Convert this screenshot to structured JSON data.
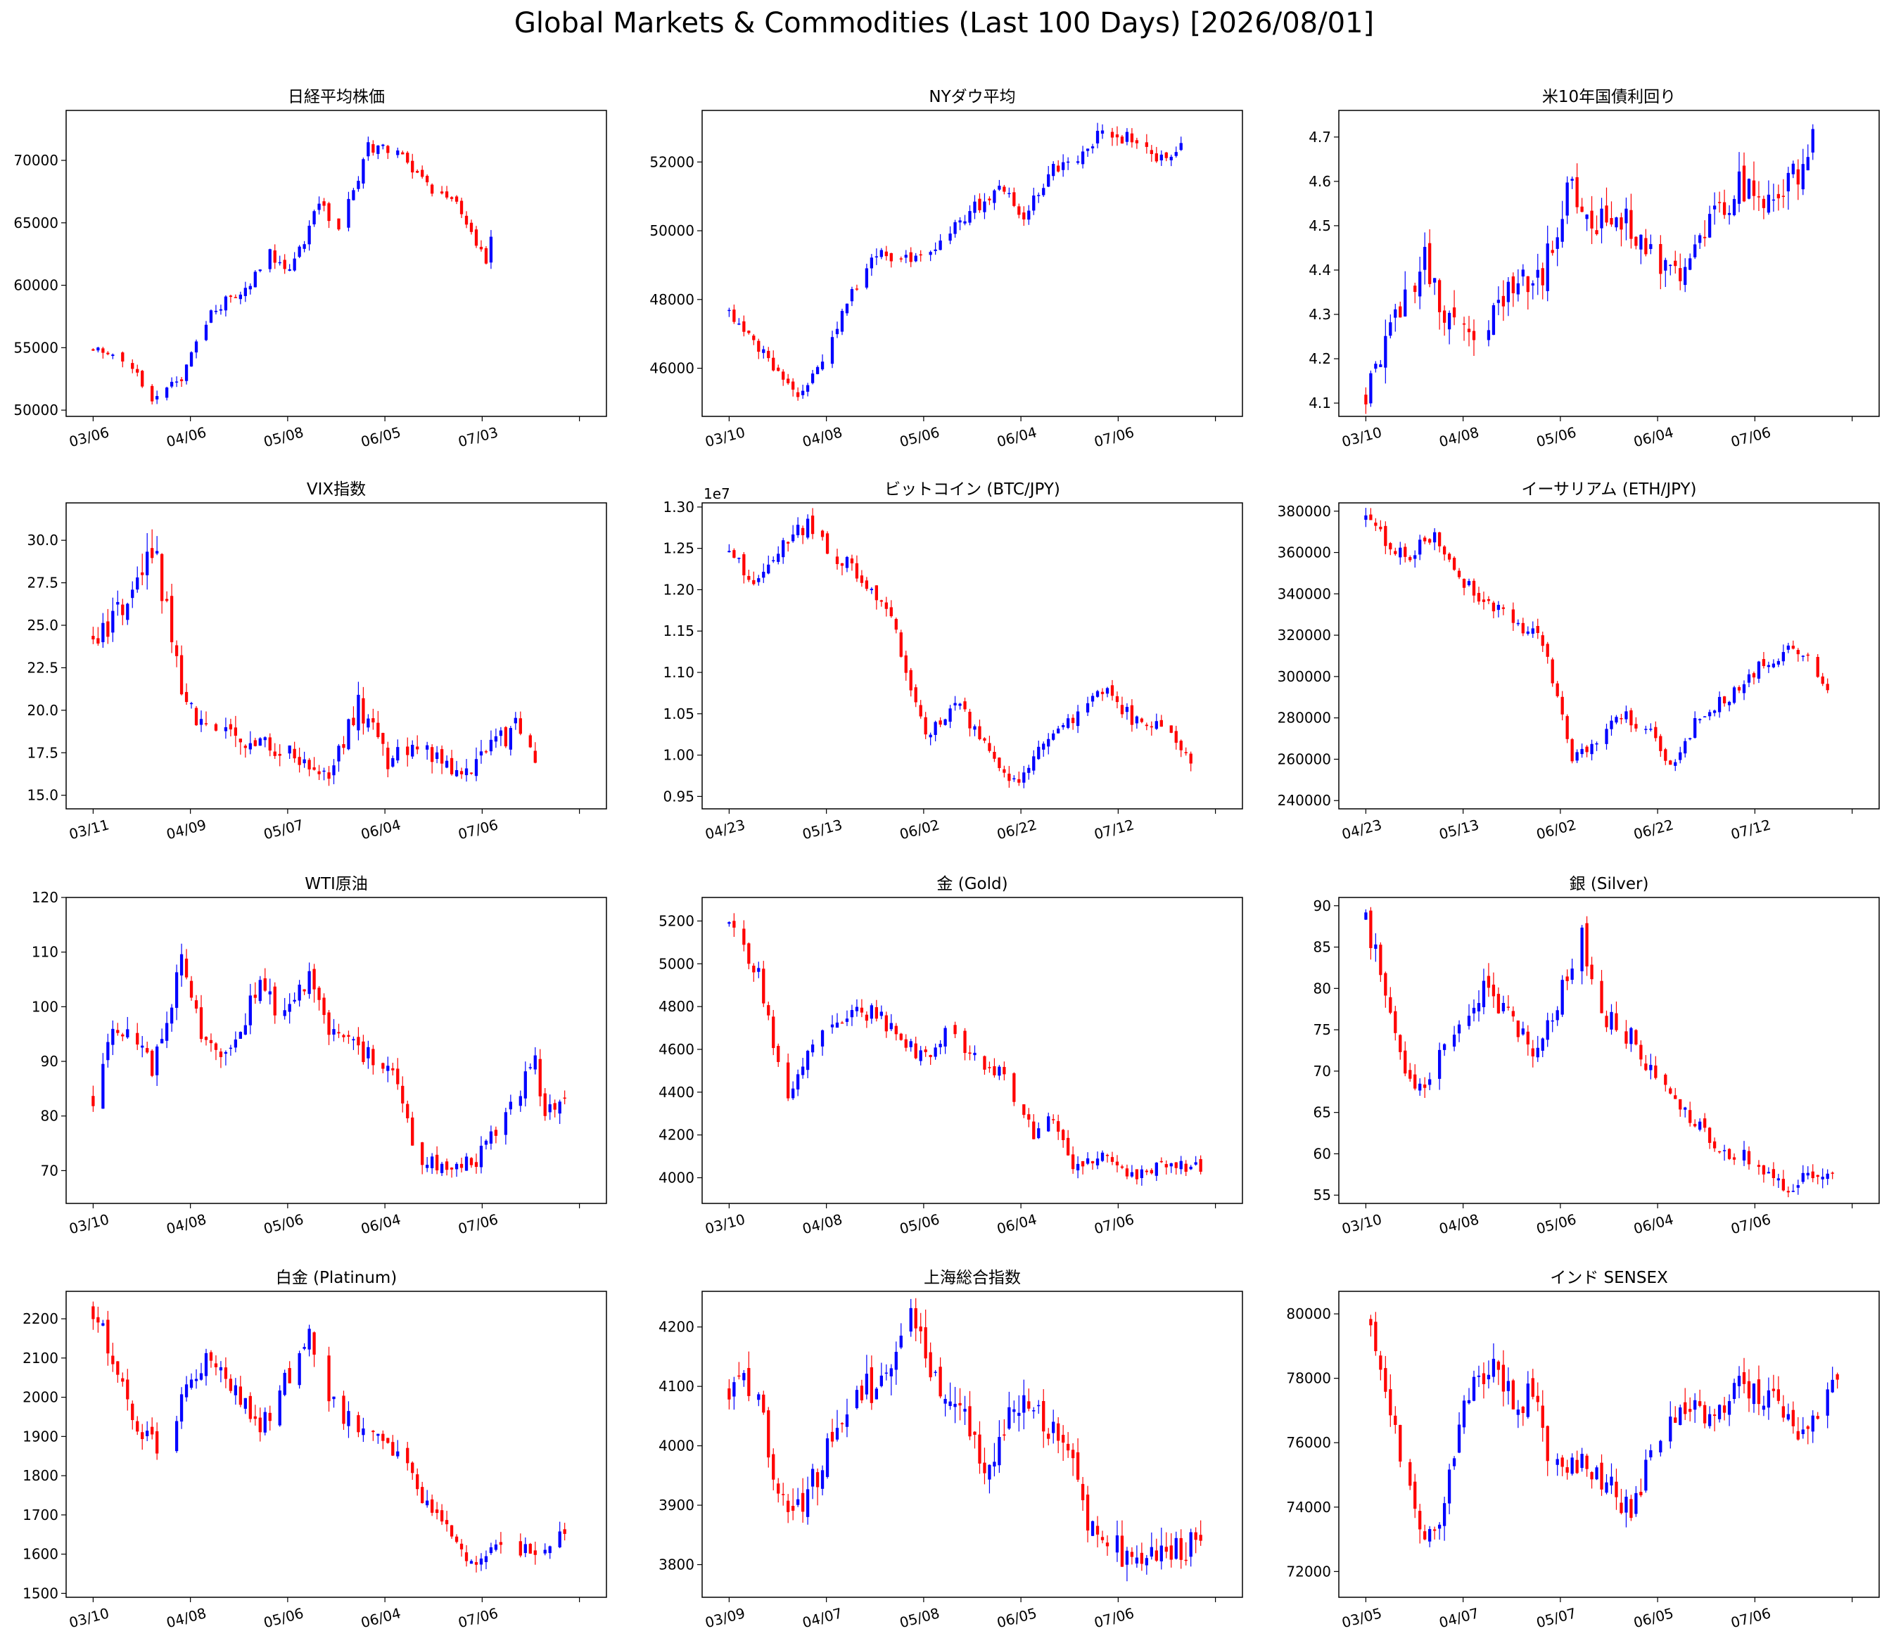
{
  "figure": {
    "title": "Global Markets & Commodities (Last 100 Days) [2026/08/01]"
  },
  "chart_data": [
    {
      "type": "candlestick",
      "title": "日経平均株価",
      "ylim": [
        49500,
        74000
      ],
      "yticks": [
        50000,
        55000,
        60000,
        65000,
        70000
      ],
      "yticklabels": [
        "50000",
        "55000",
        "60000",
        "65000",
        "70000"
      ],
      "xticklabels": [
        "03/06",
        "04/06",
        "05/08",
        "06/05",
        "07/03",
        ""
      ],
      "start": 54800,
      "anchors": [
        [
          0,
          54800
        ],
        [
          8,
          53500
        ],
        [
          12,
          51000
        ],
        [
          18,
          52500
        ],
        [
          24,
          58000
        ],
        [
          32,
          60000
        ],
        [
          36,
          62500
        ],
        [
          40,
          61000
        ],
        [
          46,
          66500
        ],
        [
          50,
          64500
        ],
        [
          56,
          71000
        ],
        [
          62,
          70500
        ],
        [
          68,
          68000
        ],
        [
          74,
          66500
        ],
        [
          80,
          62000
        ],
        [
          81,
          63500
        ]
      ],
      "vol": 0.011,
      "up_color": "blue",
      "down_color": "red"
    },
    {
      "type": "candlestick",
      "title": "NYダウ平均",
      "ylim": [
        44600,
        53500
      ],
      "yticks": [
        46000,
        48000,
        50000,
        52000
      ],
      "yticklabels": [
        "46000",
        "48000",
        "50000",
        "52000"
      ],
      "xticklabels": [
        "03/10",
        "04/08",
        "05/06",
        "06/04",
        "07/06",
        ""
      ],
      "start": 47600,
      "anchors": [
        [
          0,
          47600
        ],
        [
          6,
          46500
        ],
        [
          10,
          46000
        ],
        [
          14,
          45200
        ],
        [
          20,
          46600
        ],
        [
          24,
          48000
        ],
        [
          30,
          49300
        ],
        [
          36,
          49200
        ],
        [
          44,
          49800
        ],
        [
          50,
          50700
        ],
        [
          56,
          51200
        ],
        [
          60,
          50500
        ],
        [
          66,
          51800
        ],
        [
          72,
          52200
        ],
        [
          76,
          53000
        ],
        [
          82,
          52600
        ],
        [
          88,
          52100
        ],
        [
          92,
          52400
        ]
      ],
      "vol": 0.006,
      "up_color": "blue",
      "down_color": "red"
    },
    {
      "type": "candlestick",
      "title": "米10年国債利回り",
      "ylim": [
        4.07,
        4.76
      ],
      "yticks": [
        4.1,
        4.2,
        4.3,
        4.4,
        4.5,
        4.6,
        4.7
      ],
      "yticklabels": [
        "4.1",
        "4.2",
        "4.3",
        "4.4",
        "4.5",
        "4.6",
        "4.7"
      ],
      "xticklabels": [
        "03/10",
        "04/08",
        "05/06",
        "06/04",
        "07/06",
        ""
      ],
      "start": 4.13,
      "anchors": [
        [
          0,
          4.13
        ],
        [
          4,
          4.22
        ],
        [
          8,
          4.35
        ],
        [
          12,
          4.42
        ],
        [
          16,
          4.3
        ],
        [
          22,
          4.27
        ],
        [
          28,
          4.33
        ],
        [
          36,
          4.4
        ],
        [
          42,
          4.6
        ],
        [
          46,
          4.5
        ],
        [
          52,
          4.52
        ],
        [
          58,
          4.45
        ],
        [
          64,
          4.38
        ],
        [
          70,
          4.5
        ],
        [
          76,
          4.6
        ],
        [
          82,
          4.55
        ],
        [
          88,
          4.63
        ],
        [
          92,
          4.7
        ]
      ],
      "vol": 0.012,
      "up_color": "blue",
      "down_color": "red"
    },
    {
      "type": "candlestick",
      "title": "VIX指数",
      "ylim": [
        14.2,
        32.2
      ],
      "yticks": [
        15,
        17.5,
        20,
        22.5,
        25,
        27.5,
        30
      ],
      "yticklabels": [
        "15.0",
        "17.5",
        "20.0",
        "22.5",
        "25.0",
        "27.5",
        "30.0"
      ],
      "xticklabels": [
        "03/11",
        "04/09",
        "05/07",
        "06/04",
        "07/06",
        ""
      ],
      "start": 24.5,
      "anchors": [
        [
          0,
          24.5
        ],
        [
          4,
          25
        ],
        [
          8,
          27
        ],
        [
          12,
          30
        ],
        [
          16,
          24.5
        ],
        [
          18,
          20.5
        ],
        [
          24,
          18.5
        ],
        [
          32,
          18.2
        ],
        [
          40,
          17.5
        ],
        [
          48,
          16
        ],
        [
          54,
          20.5
        ],
        [
          60,
          17
        ],
        [
          66,
          18
        ],
        [
          74,
          16
        ],
        [
          80,
          17.5
        ],
        [
          86,
          19
        ],
        [
          92,
          16.5
        ]
      ],
      "vol": 0.05,
      "up_color": "blue",
      "down_color": "red"
    },
    {
      "type": "candlestick",
      "title": "ビットコイン (BTC/JPY)",
      "ylim": [
        9350000,
        13050000
      ],
      "yticks": [
        9500000,
        10000000,
        10500000,
        11000000,
        11500000,
        12000000,
        12500000,
        13000000
      ],
      "yticklabels": [
        "0.95",
        "1.00",
        "1.05",
        "1.10",
        "1.15",
        "1.20",
        "1.25",
        "1.30"
      ],
      "offset_text": "1e7",
      "xticklabels": [
        "04/23",
        "05/13",
        "06/02",
        "06/22",
        "07/12",
        ""
      ],
      "start": 12450000,
      "anchors": [
        [
          0,
          12450000
        ],
        [
          6,
          12100000
        ],
        [
          10,
          12500000
        ],
        [
          16,
          12800000
        ],
        [
          22,
          12400000
        ],
        [
          28,
          12100000
        ],
        [
          34,
          11500000
        ],
        [
          40,
          10200000
        ],
        [
          46,
          10600000
        ],
        [
          52,
          10200000
        ],
        [
          58,
          9650000
        ],
        [
          64,
          10200000
        ],
        [
          70,
          10400000
        ],
        [
          76,
          10800000
        ],
        [
          82,
          10450000
        ],
        [
          88,
          10400000
        ],
        [
          94,
          9900000
        ]
      ],
      "vol": 0.012,
      "up_color": "blue",
      "down_color": "red"
    },
    {
      "type": "candlestick",
      "title": "イーサリアム (ETH/JPY)",
      "ylim": [
        236000,
        384000
      ],
      "yticks": [
        240000,
        260000,
        280000,
        300000,
        320000,
        340000,
        360000,
        380000
      ],
      "yticklabels": [
        "240000",
        "260000",
        "280000",
        "300000",
        "320000",
        "340000",
        "360000",
        "380000"
      ],
      "xticklabels": [
        "04/23",
        "05/13",
        "06/02",
        "06/22",
        "07/12",
        ""
      ],
      "start": 375000,
      "anchors": [
        [
          0,
          375000
        ],
        [
          8,
          358000
        ],
        [
          14,
          368000
        ],
        [
          20,
          345000
        ],
        [
          28,
          330000
        ],
        [
          36,
          318000
        ],
        [
          42,
          260000
        ],
        [
          48,
          272000
        ],
        [
          52,
          282000
        ],
        [
          58,
          272000
        ],
        [
          62,
          255000
        ],
        [
          68,
          282000
        ],
        [
          74,
          290000
        ],
        [
          80,
          305000
        ],
        [
          86,
          312000
        ],
        [
          90,
          308000
        ],
        [
          94,
          293000
        ]
      ],
      "vol": 0.015,
      "up_color": "blue",
      "down_color": "red"
    },
    {
      "type": "candlestick",
      "title": "WTI原油",
      "ylim": [
        64,
        120
      ],
      "yticks": [
        70,
        80,
        90,
        100,
        110,
        120
      ],
      "yticklabels": [
        "70",
        "80",
        "90",
        "100",
        "110",
        "120"
      ],
      "xticklabels": [
        "03/10",
        "04/08",
        "05/06",
        "06/04",
        "07/06",
        ""
      ],
      "start": 83,
      "anchors": [
        [
          0,
          83
        ],
        [
          4,
          95
        ],
        [
          8,
          95
        ],
        [
          12,
          88
        ],
        [
          18,
          108
        ],
        [
          22,
          96
        ],
        [
          26,
          90
        ],
        [
          30,
          96
        ],
        [
          34,
          106
        ],
        [
          38,
          98
        ],
        [
          44,
          106
        ],
        [
          48,
          96
        ],
        [
          54,
          92
        ],
        [
          60,
          90
        ],
        [
          66,
          73
        ],
        [
          72,
          70
        ],
        [
          78,
          72
        ],
        [
          84,
          80
        ],
        [
          90,
          90
        ],
        [
          92,
          80
        ],
        [
          96,
          84
        ]
      ],
      "vol": 0.03,
      "up_color": "blue",
      "down_color": "red"
    },
    {
      "type": "candlestick",
      "title": "金 (Gold)",
      "ylim": [
        3880,
        5310
      ],
      "yticks": [
        4000,
        4200,
        4400,
        4600,
        4800,
        5000,
        5200
      ],
      "yticklabels": [
        "4000",
        "4200",
        "4400",
        "4600",
        "4800",
        "5000",
        "5200"
      ],
      "xticklabels": [
        "03/10",
        "04/08",
        "05/06",
        "06/04",
        "07/06",
        ""
      ],
      "start": 5200,
      "anchors": [
        [
          0,
          5200
        ],
        [
          6,
          4950
        ],
        [
          9,
          4620
        ],
        [
          12,
          4400
        ],
        [
          18,
          4650
        ],
        [
          24,
          4780
        ],
        [
          30,
          4770
        ],
        [
          36,
          4620
        ],
        [
          40,
          4550
        ],
        [
          44,
          4700
        ],
        [
          50,
          4550
        ],
        [
          56,
          4480
        ],
        [
          62,
          4200
        ],
        [
          66,
          4300
        ],
        [
          70,
          4050
        ],
        [
          76,
          4100
        ],
        [
          82,
          4000
        ],
        [
          88,
          4050
        ],
        [
          96,
          4050
        ]
      ],
      "vol": 0.012,
      "up_color": "blue",
      "down_color": "red"
    },
    {
      "type": "candlestick",
      "title": "銀 (Silver)",
      "ylim": [
        54,
        91
      ],
      "yticks": [
        55,
        60,
        65,
        70,
        75,
        80,
        85,
        90
      ],
      "yticklabels": [
        "55",
        "60",
        "65",
        "70",
        "75",
        "80",
        "85",
        "90"
      ],
      "xticklabels": [
        "03/10",
        "04/08",
        "05/06",
        "06/04",
        "07/06",
        ""
      ],
      "start": 88.5,
      "anchors": [
        [
          0,
          88.5
        ],
        [
          4,
          80
        ],
        [
          8,
          70
        ],
        [
          12,
          68
        ],
        [
          18,
          75
        ],
        [
          24,
          80
        ],
        [
          30,
          76
        ],
        [
          34,
          72
        ],
        [
          40,
          80
        ],
        [
          44,
          86
        ],
        [
          48,
          77
        ],
        [
          54,
          74
        ],
        [
          60,
          68
        ],
        [
          64,
          65
        ],
        [
          70,
          62
        ],
        [
          74,
          60
        ],
        [
          80,
          59
        ],
        [
          86,
          56
        ],
        [
          92,
          58
        ],
        [
          96,
          58
        ]
      ],
      "vol": 0.025,
      "up_color": "blue",
      "down_color": "red"
    },
    {
      "type": "candlestick",
      "title": "白金 (Platinum)",
      "ylim": [
        1490,
        2270
      ],
      "yticks": [
        1500,
        1600,
        1700,
        1800,
        1900,
        2000,
        2100,
        2200
      ],
      "yticklabels": [
        "1500",
        "1600",
        "1700",
        "1800",
        "1900",
        "2000",
        "2100",
        "2200"
      ],
      "xticklabels": [
        "03/10",
        "04/08",
        "05/06",
        "06/04",
        "07/06",
        ""
      ],
      "start": 2230,
      "anchors": [
        [
          0,
          2230
        ],
        [
          4,
          2100
        ],
        [
          8,
          1950
        ],
        [
          14,
          1860
        ],
        [
          20,
          2050
        ],
        [
          24,
          2100
        ],
        [
          30,
          1990
        ],
        [
          34,
          1920
        ],
        [
          40,
          2060
        ],
        [
          44,
          2150
        ],
        [
          50,
          1950
        ],
        [
          56,
          1920
        ],
        [
          62,
          1850
        ],
        [
          68,
          1720
        ],
        [
          74,
          1620
        ],
        [
          78,
          1560
        ],
        [
          82,
          1620
        ],
        [
          90,
          1610
        ],
        [
          96,
          1640
        ]
      ],
      "vol": 0.02,
      "up_color": "blue",
      "down_color": "red"
    },
    {
      "type": "candlestick",
      "title": "上海総合指数",
      "ylim": [
        3745,
        4260
      ],
      "yticks": [
        3800,
        3900,
        4000,
        4100,
        4200
      ],
      "yticklabels": [
        "3800",
        "3900",
        "4000",
        "4100",
        "4200"
      ],
      "xticklabels": [
        "03/09",
        "04/07",
        "05/08",
        "06/05",
        "07/06",
        ""
      ],
      "start": 4090,
      "anchors": [
        [
          0,
          4090
        ],
        [
          6,
          4100
        ],
        [
          10,
          3900
        ],
        [
          14,
          3890
        ],
        [
          20,
          3990
        ],
        [
          26,
          4080
        ],
        [
          32,
          4120
        ],
        [
          38,
          4220
        ],
        [
          42,
          4100
        ],
        [
          48,
          4060
        ],
        [
          52,
          3960
        ],
        [
          58,
          4080
        ],
        [
          64,
          4050
        ],
        [
          70,
          3960
        ],
        [
          74,
          3850
        ],
        [
          80,
          3820
        ],
        [
          86,
          3830
        ],
        [
          96,
          3830
        ]
      ],
      "vol": 0.01,
      "up_color": "blue",
      "down_color": "red"
    },
    {
      "type": "candlestick",
      "title": "インド SENSEX",
      "ylim": [
        71200,
        80700
      ],
      "yticks": [
        72000,
        74000,
        76000,
        78000,
        80000
      ],
      "yticklabels": [
        "72000",
        "74000",
        "76000",
        "78000",
        "80000"
      ],
      "xticklabels": [
        "03/05",
        "04/07",
        "05/07",
        "06/05",
        "07/06",
        ""
      ],
      "start": 79800,
      "anchors": [
        [
          0,
          79800
        ],
        [
          4,
          77500
        ],
        [
          8,
          75200
        ],
        [
          12,
          73200
        ],
        [
          16,
          74000
        ],
        [
          20,
          77200
        ],
        [
          26,
          78600
        ],
        [
          30,
          77200
        ],
        [
          34,
          77500
        ],
        [
          38,
          75200
        ],
        [
          44,
          75400
        ],
        [
          50,
          74600
        ],
        [
          54,
          73800
        ],
        [
          58,
          75500
        ],
        [
          64,
          77200
        ],
        [
          70,
          76800
        ],
        [
          76,
          77800
        ],
        [
          82,
          77400
        ],
        [
          88,
          76500
        ],
        [
          96,
          77800
        ]
      ],
      "vol": 0.008,
      "up_color": "blue",
      "down_color": "red"
    }
  ]
}
